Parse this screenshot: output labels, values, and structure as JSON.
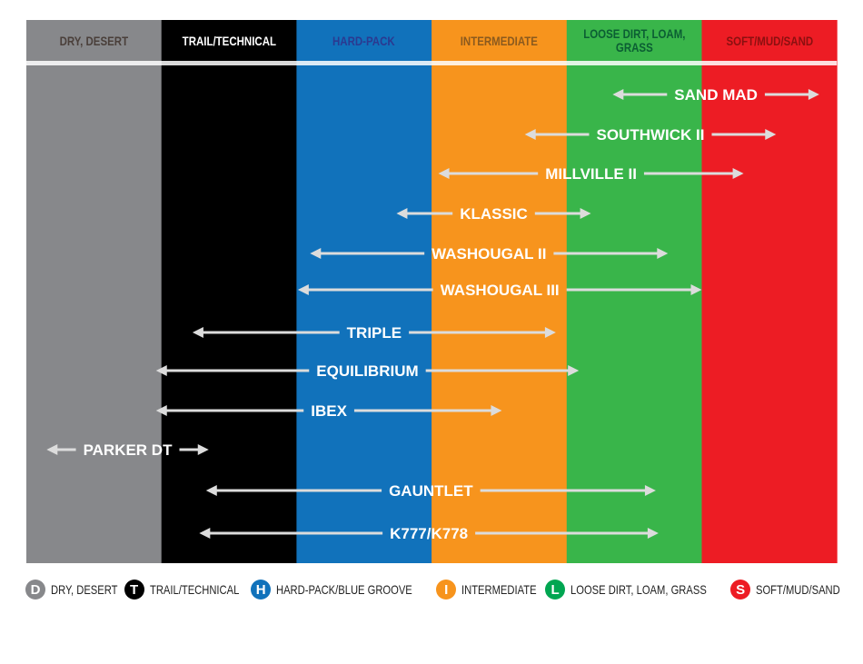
{
  "columns": [
    {
      "label": "DRY, DESERT",
      "color": "#87888b",
      "text_color": "#4a3f3a"
    },
    {
      "label": "TRAIL/TECHNICAL",
      "color": "#000000",
      "text_color": "#ffffff"
    },
    {
      "label": "HARD-PACK",
      "color": "#1172bb",
      "text_color": "#2b3990"
    },
    {
      "label": "INTERMEDIATE",
      "color": "#f7941d",
      "text_color": "#8b5a1e"
    },
    {
      "label": "LOOSE DIRT, LOAM, GRASS",
      "color": "#39b54a",
      "text_color": "#0b5e33"
    },
    {
      "label": "SOFT/MUD/SAND",
      "color": "#ed1c24",
      "text_color": "#8b1010"
    }
  ],
  "arrow_color": "#dcdcdc",
  "tires": [
    {
      "name": "SAND MAD",
      "range": [
        4.34,
        5.87
      ]
    },
    {
      "name": "SOUTHWICK II",
      "range": [
        3.69,
        5.55
      ]
    },
    {
      "name": "MILLVILLE II",
      "range": [
        3.05,
        5.31
      ]
    },
    {
      "name": "KLASSIC",
      "range": [
        2.74,
        4.18
      ]
    },
    {
      "name": "WASHOUGAL II",
      "range": [
        2.1,
        4.75
      ]
    },
    {
      "name": "WASHOUGAL III",
      "range": [
        2.01,
        5.0
      ]
    },
    {
      "name": "TRIPLE",
      "range": [
        1.23,
        3.92
      ]
    },
    {
      "name": "EQUILIBRIUM",
      "range": [
        0.96,
        4.09
      ]
    },
    {
      "name": "IBEX",
      "range": [
        0.96,
        3.52
      ]
    },
    {
      "name": "PARKER DT",
      "range": [
        0.15,
        1.35
      ]
    },
    {
      "name": "GAUNTLET",
      "range": [
        1.33,
        4.66
      ]
    },
    {
      "name": "K777/K778",
      "range": [
        1.28,
        4.68
      ]
    }
  ],
  "legend": [
    {
      "letter": "D",
      "label": "DRY, DESERT",
      "color": "#87888b"
    },
    {
      "letter": "T",
      "label": "TRAIL/TECHNICAL",
      "color": "#000000"
    },
    {
      "letter": "H",
      "label": "HARD-PACK/BLUE GROOVE",
      "color": "#1172bb"
    },
    {
      "letter": "I",
      "label": "INTERMEDIATE",
      "color": "#f7941d"
    },
    {
      "letter": "L",
      "label": "LOOSE DIRT, LOAM, GRASS",
      "color": "#00a651"
    },
    {
      "letter": "S",
      "label": "SOFT/MUD/SAND",
      "color": "#ed1c24"
    }
  ]
}
